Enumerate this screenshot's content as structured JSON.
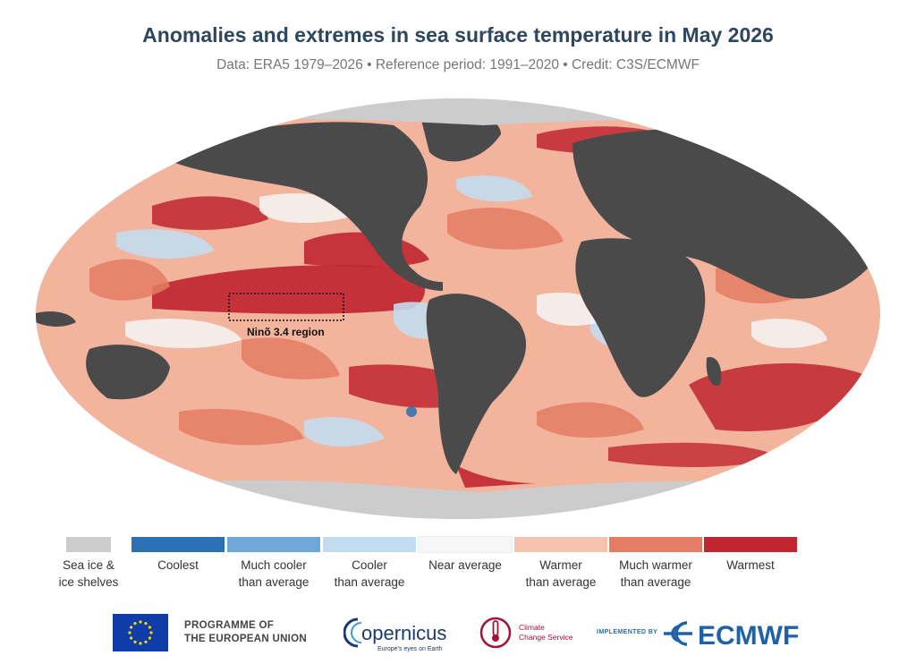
{
  "title": "Anomalies and extremes in sea surface temperature in May 2026",
  "subtitle": "Data: ERA5 1979–2026 • Reference period: 1991–2020 • Credit: C3S/ECMWF",
  "map": {
    "projection": "robinson",
    "annotation": "Ninõ 3.4 region",
    "colors": {
      "land": "#4a4a4a",
      "ocean_base": "#f2b49c"
    }
  },
  "legend": [
    {
      "label1": "Sea ice &",
      "label2": "ice shelves",
      "color": "#cccccc"
    },
    {
      "label1": "Coolest",
      "label2": "",
      "color": "#2b70b3"
    },
    {
      "label1": "Much cooler",
      "label2": "than average",
      "color": "#6ea8d8"
    },
    {
      "label1": "Cooler",
      "label2": "than average",
      "color": "#c4dcef"
    },
    {
      "label1": "Near average",
      "label2": "",
      "color": "#f6f6f6"
    },
    {
      "label1": "Warmer",
      "label2": "than average",
      "color": "#f6c2ac"
    },
    {
      "label1": "Much warmer",
      "label2": "than average",
      "color": "#e57d64"
    },
    {
      "label1": "Warmest",
      "label2": "",
      "color": "#c02630"
    }
  ],
  "footer": {
    "programme_line1": "PROGRAMME OF",
    "programme_line2": "THE EUROPEAN UNION",
    "copernicus_logo": "opernicus",
    "copernicus_tagline": "Europe's eyes on Earth",
    "c3s_line1": "Climate",
    "c3s_line2": "Change Service",
    "implemented_by": "IMPLEMENTED BY",
    "ecmwf_logo": "ECMWF"
  }
}
